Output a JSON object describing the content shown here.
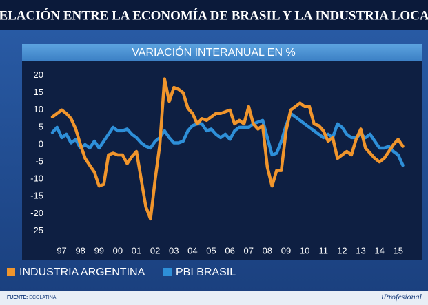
{
  "chart_data": {
    "type": "line",
    "title": "RELACIÓN ENTRE LA ECONOMÍA DE BRASIL Y LA INDUSTRIA LOCAL",
    "subtitle": "VARIACIÓN INTERANUAL EN %",
    "categories": [
      null,
      null,
      "97",
      null,
      null,
      null,
      "98",
      null,
      null,
      null,
      "99",
      null,
      null,
      null,
      "00",
      null,
      null,
      null,
      "01",
      null,
      null,
      null,
      "02",
      null,
      null,
      null,
      "03",
      null,
      null,
      null,
      "04",
      null,
      null,
      null,
      "05",
      null,
      null,
      null,
      "06",
      null,
      null,
      null,
      "07",
      null,
      null,
      null,
      "08",
      null,
      null,
      null,
      "09",
      null,
      null,
      null,
      "10",
      null,
      null,
      null,
      "11",
      null,
      null,
      null,
      "12",
      null,
      null,
      null,
      "13",
      null,
      null,
      null,
      "14",
      null,
      null,
      null,
      "15",
      null
    ],
    "series": [
      {
        "name": "INDUSTRIA ARGENTINA",
        "color": "#f0952c",
        "values": [
          8,
          9,
          10,
          9,
          7.5,
          4.5,
          0,
          -4,
          -6,
          -8,
          -12,
          -11.5,
          -3,
          -2.5,
          -3,
          -3,
          -5.5,
          -3.5,
          -2,
          -10,
          -18,
          -21.5,
          -10,
          0,
          19,
          12.5,
          16.5,
          16,
          15,
          10.5,
          9,
          6,
          7.5,
          7,
          8,
          9,
          9,
          9.5,
          10,
          6,
          7,
          6,
          11,
          6,
          4.5,
          5.5,
          -6.5,
          -12,
          -7.5,
          -7.5,
          4,
          10,
          11,
          12,
          11,
          11,
          6,
          5.5,
          4,
          1,
          2,
          -4,
          -3,
          -2,
          -3,
          1.5,
          4.5,
          -1,
          -2.5,
          -4,
          -5,
          -4,
          -2,
          0,
          1.5,
          -0.5
        ]
      },
      {
        "name": "PBI BRASIL",
        "color": "#2e8fd8",
        "values": [
          3.5,
          5,
          2,
          3,
          0.5,
          1.5,
          -1,
          0,
          -1,
          1,
          -1,
          1,
          3,
          5,
          4,
          4,
          4.5,
          3,
          2,
          0.5,
          -0.5,
          -1,
          1,
          2,
          4,
          2,
          0.5,
          0.5,
          1,
          4,
          5.5,
          6,
          6,
          4,
          4.5,
          3,
          2,
          3,
          1.5,
          4,
          5,
          5,
          5,
          6,
          6.5,
          7,
          2,
          -3,
          -2.5,
          1,
          5.5,
          9,
          8,
          7,
          6,
          5,
          4,
          3,
          2,
          3,
          2,
          6,
          5,
          3,
          2,
          2,
          3,
          2,
          3,
          1,
          -1,
          -1,
          -0.5,
          -2,
          -3,
          -6
        ]
      }
    ],
    "ylim": [
      -27,
      24
    ],
    "yticks": [
      20,
      15,
      10,
      5,
      0,
      -5,
      -10,
      -15,
      -20,
      -25
    ],
    "grid": false,
    "source_label": "FUENTE:",
    "source": "ECOLATINA",
    "logo": "iProfesional"
  }
}
